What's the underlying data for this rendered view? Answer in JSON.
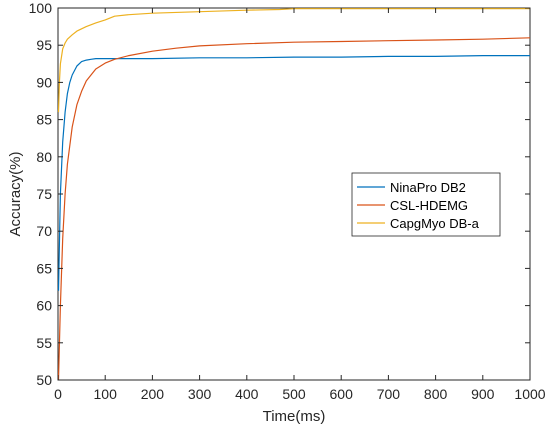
{
  "chart_data": {
    "type": "line",
    "title": "",
    "xlabel": "Time(ms)",
    "ylabel": "Accuracy(%)",
    "xlim": [
      0,
      1000
    ],
    "ylim": [
      50,
      100
    ],
    "xticks": [
      "0",
      "100",
      "200",
      "300",
      "400",
      "500",
      "600",
      "700",
      "800",
      "900",
      "1000"
    ],
    "yticks": [
      "50",
      "55",
      "60",
      "65",
      "70",
      "75",
      "80",
      "85",
      "90",
      "95",
      "100"
    ],
    "grid": false,
    "legend_position": "right",
    "series": [
      {
        "name": "NinaPro DB2",
        "color": "#0072BD",
        "x": [
          1,
          5,
          10,
          15,
          20,
          25,
          30,
          40,
          50,
          60,
          70,
          80,
          100,
          150,
          200,
          300,
          400,
          500,
          600,
          700,
          800,
          900,
          1000
        ],
        "y": [
          62,
          75,
          82,
          86,
          88.5,
          90,
          91,
          92.2,
          92.8,
          93.0,
          93.1,
          93.2,
          93.2,
          93.2,
          93.2,
          93.3,
          93.3,
          93.4,
          93.4,
          93.5,
          93.5,
          93.6,
          93.6
        ]
      },
      {
        "name": "CSL-HDEMG",
        "color": "#D95319",
        "x": [
          1,
          5,
          10,
          15,
          20,
          30,
          40,
          50,
          60,
          80,
          100,
          120,
          150,
          200,
          250,
          300,
          400,
          500,
          600,
          700,
          800,
          900,
          1000
        ],
        "y": [
          50,
          60,
          69,
          75,
          79,
          84,
          87,
          88.8,
          90.2,
          91.8,
          92.6,
          93.1,
          93.6,
          94.2,
          94.6,
          94.9,
          95.2,
          95.4,
          95.5,
          95.6,
          95.7,
          95.8,
          96.0
        ]
      },
      {
        "name": "CapgMyo DB-a",
        "color": "#EDB120",
        "x": [
          1,
          3,
          5,
          10,
          15,
          20,
          30,
          40,
          50,
          60,
          80,
          100,
          120,
          150,
          200,
          300,
          400,
          470,
          500,
          600,
          700,
          800,
          900,
          1000
        ],
        "y": [
          86,
          90,
          92.5,
          94.5,
          95.3,
          95.8,
          96.4,
          96.9,
          97.2,
          97.5,
          98.0,
          98.4,
          98.9,
          99.1,
          99.3,
          99.5,
          99.7,
          99.8,
          99.9,
          99.9,
          99.9,
          99.9,
          99.9,
          99.9
        ]
      }
    ]
  }
}
